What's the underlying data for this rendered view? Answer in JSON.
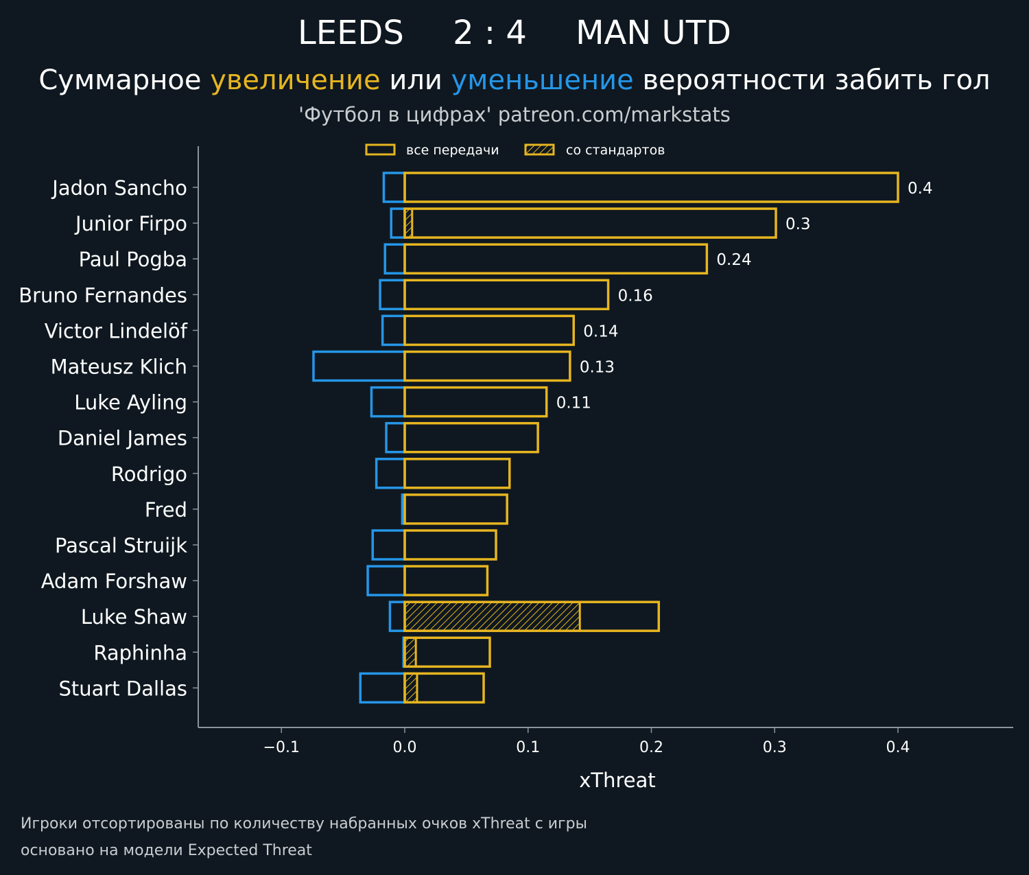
{
  "header": {
    "home_team": "LEEDS",
    "score": "2 : 4",
    "away_team": "MAN UTD",
    "subtitle_part1": "Суммарное ",
    "subtitle_increase": "увеличение",
    "subtitle_part2": " или ",
    "subtitle_decrease": "уменьшение",
    "subtitle_part3": " вероятности забить гол",
    "credit": "'Футбол в цифрах' patreon.com/markstats"
  },
  "footnote": {
    "line1": "Игроки отсортированы по количеству набранных очков xThreat с игры",
    "line2": "основано на модели Expected Threat"
  },
  "colors": {
    "background": "#0f1820",
    "positive": "#e6b520",
    "negative": "#2596e8",
    "axis": "#8a949c",
    "muted_text": "#c9cdd0"
  },
  "chart_data": {
    "type": "bar",
    "orientation": "horizontal",
    "xlabel": "xThreat",
    "ylabel": "",
    "xlim": [
      -0.168,
      0.495
    ],
    "xticks": [
      -0.1,
      0.0,
      0.1,
      0.2,
      0.3,
      0.4
    ],
    "xtick_labels": [
      "−0.1",
      "0.0",
      "0.1",
      "0.2",
      "0.3",
      "0.4"
    ],
    "legend": {
      "position": "top-center",
      "entries": [
        {
          "label": "все передачи",
          "style": "outline"
        },
        {
          "label": "со стандартов",
          "style": "hatched"
        }
      ]
    },
    "categories": [
      "Jadon Sancho",
      "Junior Firpo",
      "Paul Pogba",
      "Bruno Fernandes",
      "Victor Lindelöf",
      "Mateusz Klich",
      "Luke Ayling",
      "Daniel James",
      "Rodrigo",
      "Fred",
      "Pascal Struijk",
      "Adam Forshaw",
      "Luke Shaw",
      "Raphinha",
      "Stuart Dallas"
    ],
    "series": [
      {
        "name": "увеличение (все передачи)",
        "values": [
          0.4,
          0.301,
          0.245,
          0.165,
          0.137,
          0.134,
          0.115,
          0.108,
          0.085,
          0.083,
          0.074,
          0.067,
          0.206,
          0.069,
          0.064
        ]
      },
      {
        "name": "уменьшение",
        "values": [
          -0.017,
          -0.011,
          -0.016,
          -0.02,
          -0.018,
          -0.074,
          -0.027,
          -0.015,
          -0.023,
          -0.002,
          -0.026,
          -0.03,
          -0.012,
          -0.001,
          -0.036
        ]
      },
      {
        "name": "со стандартов",
        "values": [
          0,
          0.006,
          0,
          0,
          0,
          0,
          0,
          0,
          0,
          0,
          0,
          0,
          0.142,
          0.009,
          0.01
        ]
      }
    ],
    "value_labels": [
      "0.4",
      "0.3",
      "0.24",
      "0.16",
      "0.14",
      "0.13",
      "0.11",
      "",
      "",
      "",
      "",
      "",
      "",
      "",
      ""
    ]
  }
}
